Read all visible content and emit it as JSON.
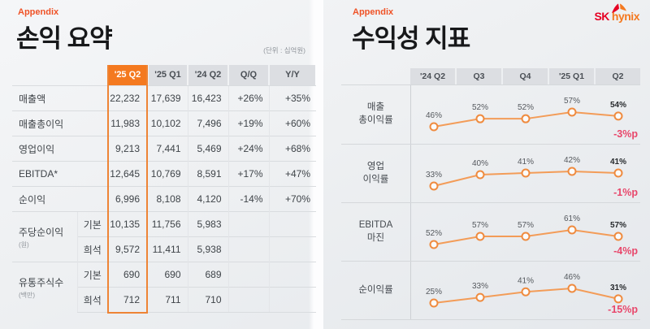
{
  "brand": {
    "sk": "SK",
    "hynix": "hynix",
    "sk_color": "#E60023",
    "hynix_color": "#F47920"
  },
  "colors": {
    "accent_orange": "#F4791F",
    "highlight_border": "#EE8435",
    "trend_line": "#F39C58",
    "point_stroke": "#EF8B3F",
    "change_red": "#E8476B",
    "header_gray": "#DCDEE2"
  },
  "left": {
    "appendix": "Appendix",
    "title": "손익 요약",
    "unit_note": "(단위 : 십억원)",
    "table": {
      "columns": [
        "'25 Q2",
        "'25 Q1",
        "'24 Q2",
        "Q/Q",
        "Y/Y"
      ],
      "rows": [
        {
          "label": "매출액",
          "values": [
            "22,232",
            "17,639",
            "16,423"
          ],
          "qq": "+26%",
          "yy": "+35%"
        },
        {
          "label": "매출총이익",
          "values": [
            "11,983",
            "10,102",
            "7,496"
          ],
          "qq": "+19%",
          "yy": "+60%"
        },
        {
          "label": "영업이익",
          "values": [
            "9,213",
            "7,441",
            "5,469"
          ],
          "qq": "+24%",
          "yy": "+68%"
        },
        {
          "label": "EBITDA*",
          "values": [
            "12,645",
            "10,769",
            "8,591"
          ],
          "qq": "+17%",
          "yy": "+47%"
        },
        {
          "label": "순이익",
          "values": [
            "6,996",
            "8,108",
            "4,120"
          ],
          "qq": "-14%",
          "yy": "+70%"
        },
        {
          "label": "주당순이익",
          "label_unit": "(원)",
          "sub": "기본",
          "values": [
            "10,135",
            "11,756",
            "5,983"
          ],
          "qq": "",
          "yy": ""
        },
        {
          "sub": "희석",
          "values": [
            "9,572",
            "11,411",
            "5,938"
          ],
          "qq": "",
          "yy": ""
        },
        {
          "label": "유통주식수",
          "label_unit": "(백만)",
          "sub": "기본",
          "values": [
            "690",
            "690",
            "689"
          ],
          "qq": "",
          "yy": ""
        },
        {
          "sub": "희석",
          "values": [
            "712",
            "711",
            "710"
          ],
          "qq": "",
          "yy": ""
        }
      ]
    }
  },
  "right": {
    "appendix": "Appendix",
    "title": "수익성 지표",
    "columns": [
      "'24 Q2",
      "Q3",
      "Q4",
      "'25 Q1",
      "Q2"
    ]
  },
  "chart_data": [
    {
      "type": "line",
      "title": "매출총이익률",
      "label_line1": "매출",
      "label_line2": "총이익률",
      "categories": [
        "'24 Q2",
        "Q3",
        "Q4",
        "'25 Q1",
        "Q2"
      ],
      "values": [
        46,
        52,
        52,
        57,
        54
      ],
      "unit": "%",
      "ylim": [
        20,
        65
      ],
      "change_label": "-3%p"
    },
    {
      "type": "line",
      "title": "영업이익률",
      "label_line1": "영업",
      "label_line2": "이익률",
      "categories": [
        "'24 Q2",
        "Q3",
        "Q4",
        "'25 Q1",
        "Q2"
      ],
      "values": [
        33,
        40,
        41,
        42,
        41
      ],
      "unit": "%",
      "ylim": [
        20,
        65
      ],
      "change_label": "-1%p"
    },
    {
      "type": "line",
      "title": "EBITDA 마진",
      "label_line1": "EBITDA",
      "label_line2": "마진",
      "categories": [
        "'24 Q2",
        "Q3",
        "Q4",
        "'25 Q1",
        "Q2"
      ],
      "values": [
        52,
        57,
        57,
        61,
        57
      ],
      "unit": "%",
      "ylim": [
        20,
        65
      ],
      "change_label": "-4%p"
    },
    {
      "type": "line",
      "title": "순이익률",
      "label_line1": "순이익률",
      "label_line2": "",
      "categories": [
        "'24 Q2",
        "Q3",
        "Q4",
        "'25 Q1",
        "Q2"
      ],
      "values": [
        25,
        33,
        41,
        46,
        31
      ],
      "unit": "%",
      "ylim": [
        20,
        65
      ],
      "change_label": "-15%p"
    }
  ]
}
